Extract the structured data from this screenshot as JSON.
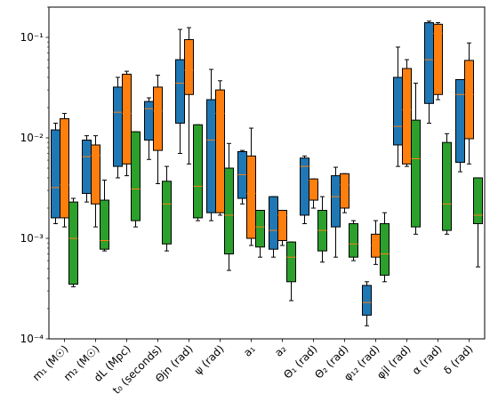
{
  "chart_data": {
    "type": "boxplot",
    "title": "",
    "xlabel": "",
    "ylabel": "",
    "yscale": "log",
    "ylim": [
      0.0001,
      0.2
    ],
    "grid": false,
    "legend": "none",
    "y_tick_labels": [
      {
        "value": 0.0001,
        "label": "10⁻⁴"
      },
      {
        "value": 0.001,
        "label": "10⁻³"
      },
      {
        "value": 0.01,
        "label": "10⁻²"
      },
      {
        "value": 0.1,
        "label": "10⁻¹"
      }
    ],
    "categories": [
      "m₁ (M☉)",
      "m₂ (M☉)",
      "dL (Mpc)",
      "t₀ (seconds)",
      "Θjn (rad)",
      "ψ (rad)",
      "a₁",
      "a₂",
      "Θ₁ (rad)",
      "Θ₂ (rad)",
      "φ₁₂ (rad)",
      "φjl (rad)",
      "α (rad)",
      "δ (rad)"
    ],
    "series_colors": [
      "#1f77b4",
      "#ff7f0e",
      "#2ca02c"
    ],
    "median_color": "#ff7f0e",
    "series": [
      {
        "boxes": [
          {
            "whislo": 0.0014,
            "q1": 0.0016,
            "med": 0.0032,
            "q3": 0.012,
            "whishi": 0.014
          },
          {
            "whislo": 0.0023,
            "q1": 0.0028,
            "med": 0.0065,
            "q3": 0.0095,
            "whishi": 0.0105
          },
          {
            "whislo": 0.004,
            "q1": 0.0052,
            "med": 0.018,
            "q3": 0.032,
            "whishi": 0.04
          },
          {
            "whislo": 0.0061,
            "q1": 0.0095,
            "med": 0.0195,
            "q3": 0.023,
            "whishi": 0.025
          },
          {
            "whislo": 0.007,
            "q1": 0.014,
            "med": 0.035,
            "q3": 0.06,
            "whishi": 0.12
          },
          {
            "whislo": 0.0015,
            "q1": 0.0018,
            "med": 0.0095,
            "q3": 0.024,
            "whishi": 0.048
          },
          {
            "whislo": 0.0022,
            "q1": 0.0025,
            "med": 0.0043,
            "q3": 0.0073,
            "whishi": 0.0075
          },
          {
            "whislo": 0.00065,
            "q1": 0.00078,
            "med": 0.0012,
            "q3": 0.0026,
            "whishi": 0.0026
          },
          {
            "whislo": 0.0014,
            "q1": 0.0017,
            "med": 0.0052,
            "q3": 0.0063,
            "whishi": 0.0066
          },
          {
            "whislo": 0.00065,
            "q1": 0.0013,
            "med": 0.0026,
            "q3": 0.0042,
            "whishi": 0.0051
          },
          {
            "whislo": 0.000135,
            "q1": 0.000172,
            "med": 0.00023,
            "q3": 0.00034,
            "whishi": 0.00037
          },
          {
            "whislo": 0.0052,
            "q1": 0.0085,
            "med": 0.013,
            "q3": 0.04,
            "whishi": 0.08
          },
          {
            "whislo": 0.014,
            "q1": 0.022,
            "med": 0.06,
            "q3": 0.14,
            "whishi": 0.145
          },
          {
            "whislo": 0.0046,
            "q1": 0.0057,
            "med": 0.027,
            "q3": 0.038,
            "whishi": 0.038
          }
        ]
      },
      {
        "boxes": [
          {
            "whislo": 0.0013,
            "q1": 0.0016,
            "med": 0.0034,
            "q3": 0.0155,
            "whishi": 0.0175
          },
          {
            "whislo": 0.0013,
            "q1": 0.0022,
            "med": 0.0067,
            "q3": 0.0085,
            "whishi": 0.0105
          },
          {
            "whislo": 0.0042,
            "q1": 0.0055,
            "med": 0.0175,
            "q3": 0.043,
            "whishi": 0.046
          },
          {
            "whislo": 0.0035,
            "q1": 0.0075,
            "med": 0.0185,
            "q3": 0.032,
            "whishi": 0.042
          },
          {
            "whislo": 0.0055,
            "q1": 0.027,
            "med": 0.047,
            "q3": 0.095,
            "whishi": 0.125
          },
          {
            "whislo": 0.0017,
            "q1": 0.0018,
            "med": 0.0175,
            "q3": 0.03,
            "whishi": 0.037
          },
          {
            "whislo": 0.00085,
            "q1": 0.001,
            "med": 0.0028,
            "q3": 0.0066,
            "whishi": 0.0125
          },
          {
            "whislo": 0.00085,
            "q1": 0.00095,
            "med": 0.0017,
            "q3": 0.0019,
            "whishi": 0.0019
          },
          {
            "whislo": 0.002,
            "q1": 0.0024,
            "med": 0.0038,
            "q3": 0.0039,
            "whishi": 0.0039
          },
          {
            "whislo": 0.0018,
            "q1": 0.002,
            "med": 0.0034,
            "q3": 0.0044,
            "whishi": 0.0044
          },
          {
            "whislo": 0.00055,
            "q1": 0.00065,
            "med": 0.00085,
            "q3": 0.0011,
            "whishi": 0.0015
          },
          {
            "whislo": 0.0052,
            "q1": 0.0055,
            "med": 0.019,
            "q3": 0.049,
            "whishi": 0.06
          },
          {
            "whislo": 0.024,
            "q1": 0.027,
            "med": 0.11,
            "q3": 0.135,
            "whishi": 0.14
          },
          {
            "whislo": 0.0055,
            "q1": 0.0098,
            "med": 0.027,
            "q3": 0.059,
            "whishi": 0.088
          }
        ]
      },
      {
        "boxes": [
          {
            "whislo": 0.00033,
            "q1": 0.00035,
            "med": 0.001,
            "q3": 0.0023,
            "whishi": 0.0025
          },
          {
            "whislo": 0.00075,
            "q1": 0.00078,
            "med": 0.00095,
            "q3": 0.0024,
            "whishi": 0.0038
          },
          {
            "whislo": 0.0013,
            "q1": 0.0015,
            "med": 0.0031,
            "q3": 0.0115,
            "whishi": 0.0115
          },
          {
            "whislo": 0.00075,
            "q1": 0.00088,
            "med": 0.0022,
            "q3": 0.0037,
            "whishi": 0.0052
          },
          {
            "whislo": 0.0015,
            "q1": 0.0016,
            "med": 0.0033,
            "q3": 0.0135,
            "whishi": 0.0135
          },
          {
            "whislo": 0.00048,
            "q1": 0.0007,
            "med": 0.0017,
            "q3": 0.005,
            "whishi": 0.0088
          },
          {
            "whislo": 0.00065,
            "q1": 0.00082,
            "med": 0.0013,
            "q3": 0.0019,
            "whishi": 0.0019
          },
          {
            "whislo": 0.00024,
            "q1": 0.00037,
            "med": 0.00065,
            "q3": 0.00092,
            "whishi": 0.00092
          },
          {
            "whislo": 0.00058,
            "q1": 0.00075,
            "med": 0.0012,
            "q3": 0.0019,
            "whishi": 0.0026
          },
          {
            "whislo": 0.0006,
            "q1": 0.00065,
            "med": 0.00088,
            "q3": 0.0014,
            "whishi": 0.0015
          },
          {
            "whislo": 0.00037,
            "q1": 0.00043,
            "med": 0.0007,
            "q3": 0.0014,
            "whishi": 0.0018
          },
          {
            "whislo": 0.0011,
            "q1": 0.0013,
            "med": 0.0062,
            "q3": 0.015,
            "whishi": 0.035
          },
          {
            "whislo": 0.0011,
            "q1": 0.0012,
            "med": 0.0022,
            "q3": 0.009,
            "whishi": 0.011
          },
          {
            "whislo": 0.00052,
            "q1": 0.0014,
            "med": 0.0017,
            "q3": 0.004,
            "whishi": 0.004
          }
        ]
      }
    ]
  }
}
